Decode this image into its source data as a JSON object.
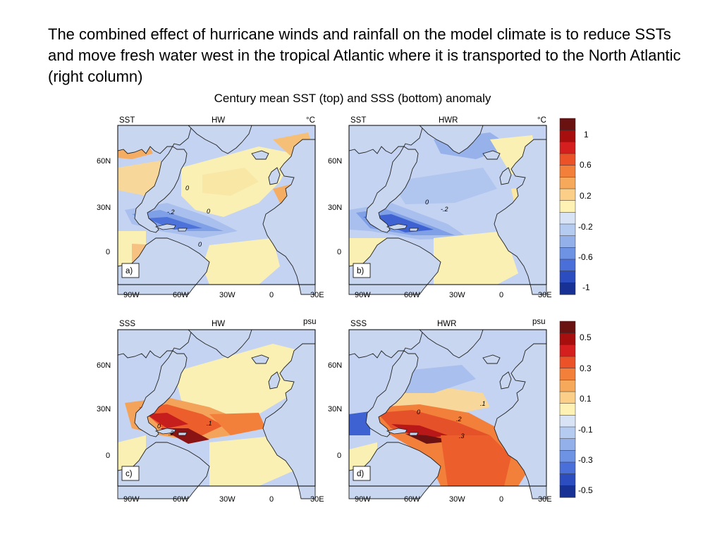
{
  "caption": "The combined effect of hurricane winds and rainfall on the model climate is to reduce SSTs and move fresh water west in the tropical Atlantic where it is transported to the North Atlantic (right column)",
  "figure_title": "Century mean SST (top) and SSS (bottom) anomaly",
  "panels": [
    {
      "var": "SST",
      "exp": "HW",
      "unit": "°C",
      "tag": "a)"
    },
    {
      "var": "SST",
      "exp": "HWR",
      "unit": "°C",
      "tag": "b)"
    },
    {
      "var": "SSS",
      "exp": "HW",
      "unit": "psu",
      "tag": "c)"
    },
    {
      "var": "SSS",
      "exp": "HWR",
      "unit": "psu",
      "tag": "d)"
    }
  ],
  "x_ticks": [
    "90W",
    "60W",
    "30W",
    "0",
    "30E"
  ],
  "y_ticks": [
    "60N",
    "30N",
    "0"
  ],
  "contour_labels": {
    "a": [
      "0",
      "0",
      "-.2",
      "0"
    ],
    "b": [
      "0",
      "-.2"
    ],
    "c": [
      ".1",
      "0",
      ".2"
    ],
    "d": [
      ".1",
      "0",
      ".2",
      ".3"
    ]
  },
  "colorbars": {
    "sst": {
      "labels": [
        "1",
        "0.6",
        "0.2",
        "-0.2",
        "-0.6",
        "-1"
      ],
      "colors": [
        "#6a1212",
        "#a70e0e",
        "#d51f1f",
        "#ec5228",
        "#f27f3a",
        "#f7a95b",
        "#fbcf87",
        "#fdf2b3",
        "#d8e3f5",
        "#b6cbf0",
        "#93b0eb",
        "#6e92e4",
        "#4a6fd8",
        "#2c4dbf",
        "#173195"
      ]
    },
    "sss": {
      "labels": [
        "0.5",
        "0.3",
        "0.1",
        "-0.1",
        "-0.3",
        "-0.5"
      ],
      "colors": [
        "#6a1212",
        "#a70e0e",
        "#d51f1f",
        "#ec5228",
        "#f27f3a",
        "#f7a95b",
        "#fbcf87",
        "#fdf2b3",
        "#d8e3f5",
        "#b6cbf0",
        "#93b0eb",
        "#6e92e4",
        "#4a6fd8",
        "#2c4dbf",
        "#173195"
      ]
    }
  }
}
